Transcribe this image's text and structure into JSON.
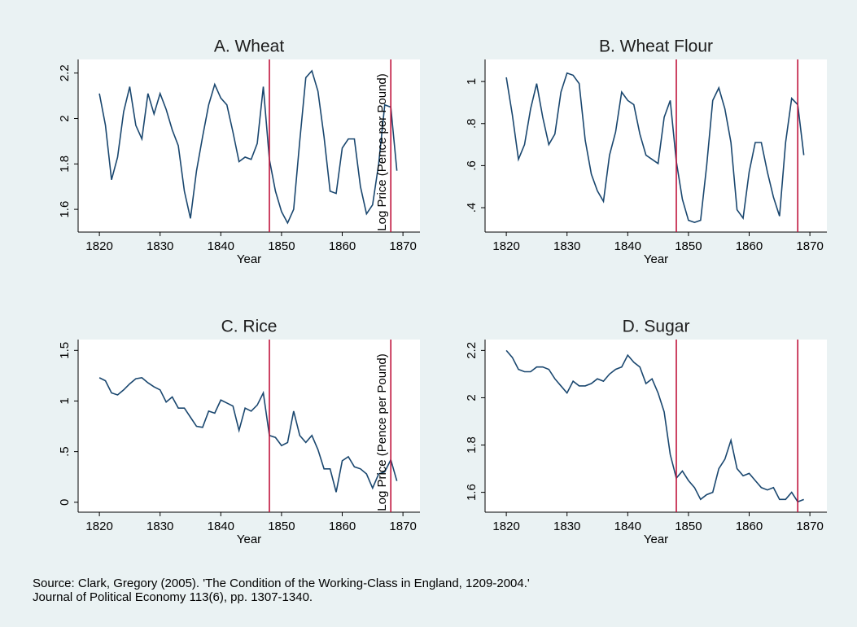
{
  "chart_data": [
    {
      "type": "line",
      "title": "A. Wheat",
      "x_label": "Year",
      "color": "#1a476f",
      "ref_color": "#c0143c",
      "reference_lines": [
        1848,
        1868
      ],
      "x": [
        1820,
        1821,
        1822,
        1823,
        1824,
        1825,
        1826,
        1827,
        1828,
        1829,
        1830,
        1831,
        1832,
        1833,
        1834,
        1835,
        1836,
        1837,
        1838,
        1839,
        1840,
        1841,
        1842,
        1843,
        1844,
        1845,
        1846,
        1847,
        1848,
        1849,
        1850,
        1851,
        1852,
        1853,
        1854,
        1855,
        1856,
        1857,
        1858,
        1859,
        1860,
        1861,
        1862,
        1863,
        1864,
        1865,
        1866,
        1867,
        1868,
        1869
      ],
      "values": [
        2.11,
        1.97,
        1.73,
        1.83,
        2.03,
        2.14,
        1.97,
        1.91,
        2.11,
        2.02,
        2.11,
        2.04,
        1.95,
        1.88,
        1.68,
        1.56,
        1.77,
        1.92,
        2.06,
        2.15,
        2.09,
        2.06,
        1.94,
        1.81,
        1.83,
        1.82,
        1.89,
        2.14,
        1.82,
        1.68,
        1.59,
        1.54,
        1.6,
        1.9,
        2.18,
        2.21,
        2.12,
        1.92,
        1.68,
        1.67,
        1.87,
        1.91,
        1.91,
        1.7,
        1.58,
        1.62,
        1.8,
        2.06,
        2.05,
        1.77
      ],
      "xlim": [
        1816.5,
        1872.8
      ],
      "xticks": [
        1820,
        1830,
        1840,
        1850,
        1860,
        1870
      ],
      "ylim": [
        1.5,
        2.26
      ],
      "yticks": [
        1.6,
        1.8,
        2,
        2.2
      ]
    },
    {
      "type": "line",
      "title": "B. Wheat Flour",
      "x_label": "Year",
      "y_label": "Log Price (Pence per Pound)",
      "color": "#1a476f",
      "ref_color": "#c0143c",
      "reference_lines": [
        1848,
        1868
      ],
      "x": [
        1820,
        1821,
        1822,
        1823,
        1824,
        1825,
        1826,
        1827,
        1828,
        1829,
        1830,
        1831,
        1832,
        1833,
        1834,
        1835,
        1836,
        1837,
        1838,
        1839,
        1840,
        1841,
        1842,
        1843,
        1844,
        1845,
        1846,
        1847,
        1848,
        1849,
        1850,
        1851,
        1852,
        1853,
        1854,
        1855,
        1856,
        1857,
        1858,
        1859,
        1860,
        1861,
        1862,
        1863,
        1864,
        1865,
        1866,
        1867,
        1868,
        1869
      ],
      "values": [
        1.02,
        0.84,
        0.63,
        0.7,
        0.87,
        0.99,
        0.83,
        0.7,
        0.75,
        0.95,
        1.04,
        1.03,
        0.99,
        0.72,
        0.56,
        0.48,
        0.43,
        0.65,
        0.76,
        0.95,
        0.91,
        0.89,
        0.75,
        0.65,
        0.63,
        0.61,
        0.83,
        0.91,
        0.62,
        0.44,
        0.34,
        0.33,
        0.34,
        0.6,
        0.91,
        0.97,
        0.87,
        0.71,
        0.39,
        0.35,
        0.57,
        0.71,
        0.71,
        0.57,
        0.45,
        0.36,
        0.71,
        0.92,
        0.89,
        0.65
      ],
      "xlim": [
        1816.5,
        1872.8
      ],
      "xticks": [
        1820,
        1830,
        1840,
        1850,
        1860,
        1870
      ],
      "ylim": [
        0.284,
        1.105
      ],
      "yticks": [
        {
          "value": 0.4,
          "label": ".4"
        },
        {
          "value": 0.6,
          "label": ".6"
        },
        {
          "value": 0.8,
          "label": ".8"
        },
        1
      ]
    },
    {
      "type": "line",
      "title": "C. Rice",
      "x_label": "Year",
      "color": "#1a476f",
      "ref_color": "#c0143c",
      "reference_lines": [
        1848,
        1868
      ],
      "x": [
        1820,
        1821,
        1822,
        1823,
        1824,
        1825,
        1826,
        1827,
        1828,
        1829,
        1830,
        1831,
        1832,
        1833,
        1834,
        1835,
        1836,
        1837,
        1838,
        1839,
        1840,
        1841,
        1842,
        1843,
        1844,
        1845,
        1846,
        1847,
        1848,
        1849,
        1850,
        1851,
        1852,
        1853,
        1854,
        1855,
        1856,
        1857,
        1858,
        1859,
        1860,
        1861,
        1862,
        1863,
        1864,
        1865,
        1866,
        1867,
        1868,
        1869
      ],
      "values": [
        1.23,
        1.2,
        1.08,
        1.06,
        1.11,
        1.17,
        1.22,
        1.23,
        1.18,
        1.14,
        1.11,
        0.99,
        1.04,
        0.93,
        0.93,
        0.84,
        0.75,
        0.74,
        0.9,
        0.88,
        1.01,
        0.98,
        0.95,
        0.71,
        0.93,
        0.9,
        0.96,
        1.08,
        0.66,
        0.64,
        0.56,
        0.59,
        0.9,
        0.66,
        0.59,
        0.66,
        0.52,
        0.33,
        0.33,
        0.1,
        0.41,
        0.45,
        0.35,
        0.33,
        0.28,
        0.14,
        0.28,
        0.3,
        0.42,
        0.21
      ],
      "xlim": [
        1816.5,
        1872.8
      ],
      "xticks": [
        1820,
        1830,
        1840,
        1850,
        1860,
        1870
      ],
      "ylim": [
        -0.098,
        1.607
      ],
      "yticks": [
        0,
        {
          "value": 0.5,
          "label": ".5"
        },
        1,
        1.5
      ]
    },
    {
      "type": "line",
      "title": "D. Sugar",
      "x_label": "Year",
      "y_label": "Log Price (Pence per Pound)",
      "color": "#1a476f",
      "ref_color": "#c0143c",
      "reference_lines": [
        1848,
        1868
      ],
      "x": [
        1820,
        1821,
        1822,
        1823,
        1824,
        1825,
        1826,
        1827,
        1828,
        1829,
        1830,
        1831,
        1832,
        1833,
        1834,
        1835,
        1836,
        1837,
        1838,
        1839,
        1840,
        1841,
        1842,
        1843,
        1844,
        1845,
        1846,
        1847,
        1848,
        1849,
        1850,
        1851,
        1852,
        1853,
        1854,
        1855,
        1856,
        1857,
        1858,
        1859,
        1860,
        1861,
        1862,
        1863,
        1864,
        1865,
        1866,
        1867,
        1868,
        1869
      ],
      "values": [
        2.2,
        2.17,
        2.12,
        2.11,
        2.11,
        2.13,
        2.13,
        2.12,
        2.08,
        2.05,
        2.02,
        2.07,
        2.05,
        2.05,
        2.06,
        2.08,
        2.07,
        2.1,
        2.12,
        2.13,
        2.18,
        2.15,
        2.13,
        2.06,
        2.08,
        2.02,
        1.94,
        1.76,
        1.66,
        1.69,
        1.65,
        1.62,
        1.57,
        1.59,
        1.6,
        1.7,
        1.74,
        1.82,
        1.7,
        1.67,
        1.68,
        1.65,
        1.62,
        1.61,
        1.62,
        1.57,
        1.57,
        1.6,
        1.56,
        1.57
      ],
      "xlim": [
        1816.5,
        1872.8
      ],
      "xticks": [
        1820,
        1830,
        1840,
        1850,
        1860,
        1870
      ],
      "ylim": [
        1.516,
        2.246
      ],
      "yticks": [
        1.6,
        1.8,
        2,
        2.2
      ]
    }
  ],
  "note": [
    "Source: Clark, Gregory (2005). 'The Condition of the Working-Class in England, 1209-2004.'",
    "Journal of Political Economy 113(6), pp. 1307-1340."
  ]
}
